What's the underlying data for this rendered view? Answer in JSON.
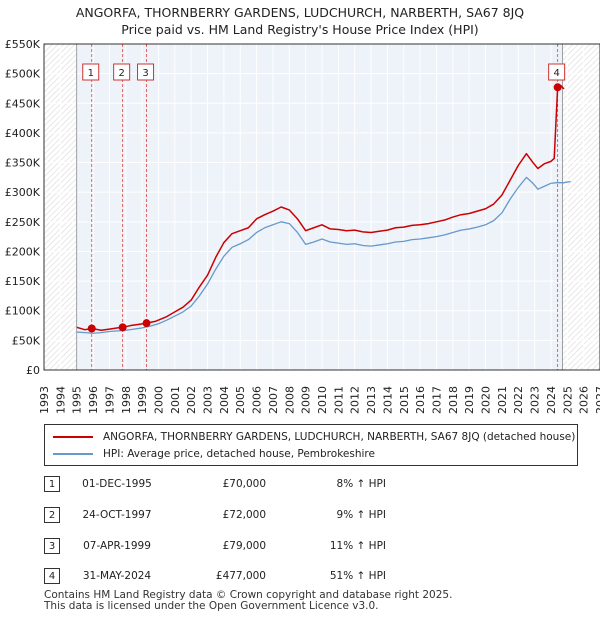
{
  "title": {
    "line1": "ANGORFA, THORNBERRY GARDENS, LUDCHURCH, NARBERTH, SA67 8JQ",
    "line2": "Price paid vs. HM Land Registry's House Price Index (HPI)"
  },
  "chart_data": {
    "type": "line",
    "title": "ANGORFA, THORNBERRY GARDENS, LUDCHURCH, NARBERTH, SA67 8JQ — Price paid vs. HM Land Registry's House Price Index (HPI)",
    "xlabel": "",
    "ylabel": "",
    "xlim": [
      1993,
      2027
    ],
    "ylim": [
      0,
      550000
    ],
    "x_ticks": [
      1993,
      1994,
      1995,
      1996,
      1997,
      1998,
      1999,
      2000,
      2001,
      2002,
      2003,
      2004,
      2005,
      2006,
      2007,
      2008,
      2009,
      2010,
      2011,
      2012,
      2013,
      2014,
      2015,
      2016,
      2017,
      2018,
      2019,
      2020,
      2021,
      2022,
      2023,
      2024,
      2025,
      2026,
      2027
    ],
    "y_ticks": [
      0,
      50000,
      100000,
      150000,
      200000,
      250000,
      300000,
      350000,
      400000,
      450000,
      500000,
      550000
    ],
    "y_tick_labels": [
      "£0",
      "£50K",
      "£100K",
      "£150K",
      "£200K",
      "£250K",
      "£300K",
      "£350K",
      "£400K",
      "£450K",
      "£500K",
      "£550K"
    ],
    "grid": true,
    "hatched_ranges": [
      [
        1993,
        1995.0
      ],
      [
        2024.7,
        2027
      ]
    ],
    "series": [
      {
        "name": "ANGORFA, THORNBERRY GARDENS, LUDCHURCH, NARBERTH, SA67 8JQ (detached house)",
        "color": "#cc0000",
        "points": [
          [
            1995.0,
            72000
          ],
          [
            1995.5,
            68000
          ],
          [
            1995.92,
            70000
          ],
          [
            1996.5,
            67000
          ],
          [
            1997.0,
            69000
          ],
          [
            1997.5,
            71000
          ],
          [
            1997.81,
            72000
          ],
          [
            1998.3,
            75000
          ],
          [
            1998.8,
            77000
          ],
          [
            1999.27,
            79000
          ],
          [
            1999.8,
            82000
          ],
          [
            2000.5,
            90000
          ],
          [
            2001.0,
            98000
          ],
          [
            2001.5,
            106000
          ],
          [
            2002.0,
            118000
          ],
          [
            2002.5,
            140000
          ],
          [
            2003.0,
            160000
          ],
          [
            2003.5,
            190000
          ],
          [
            2004.0,
            215000
          ],
          [
            2004.5,
            230000
          ],
          [
            2005.0,
            235000
          ],
          [
            2005.5,
            240000
          ],
          [
            2006.0,
            255000
          ],
          [
            2006.5,
            262000
          ],
          [
            2007.0,
            268000
          ],
          [
            2007.5,
            275000
          ],
          [
            2008.0,
            270000
          ],
          [
            2008.5,
            255000
          ],
          [
            2009.0,
            235000
          ],
          [
            2009.5,
            240000
          ],
          [
            2010.0,
            245000
          ],
          [
            2010.5,
            238000
          ],
          [
            2011.0,
            237000
          ],
          [
            2011.5,
            235000
          ],
          [
            2012.0,
            236000
          ],
          [
            2012.5,
            233000
          ],
          [
            2013.0,
            232000
          ],
          [
            2013.5,
            234000
          ],
          [
            2014.0,
            236000
          ],
          [
            2014.5,
            240000
          ],
          [
            2015.0,
            241000
          ],
          [
            2015.5,
            244000
          ],
          [
            2016.0,
            245000
          ],
          [
            2016.5,
            247000
          ],
          [
            2017.0,
            250000
          ],
          [
            2017.5,
            253000
          ],
          [
            2018.0,
            258000
          ],
          [
            2018.5,
            262000
          ],
          [
            2019.0,
            264000
          ],
          [
            2019.5,
            268000
          ],
          [
            2020.0,
            272000
          ],
          [
            2020.5,
            280000
          ],
          [
            2021.0,
            295000
          ],
          [
            2021.5,
            320000
          ],
          [
            2022.0,
            345000
          ],
          [
            2022.5,
            365000
          ],
          [
            2022.9,
            350000
          ],
          [
            2023.2,
            340000
          ],
          [
            2023.6,
            348000
          ],
          [
            2024.0,
            352000
          ],
          [
            2024.2,
            357000
          ],
          [
            2024.41,
            477000
          ],
          [
            2024.6,
            480000
          ],
          [
            2024.8,
            474000
          ]
        ]
      },
      {
        "name": "HPI: Average price, detached house, Pembrokeshire",
        "color": "#6699cc",
        "points": [
          [
            1995.0,
            64000
          ],
          [
            1995.5,
            63000
          ],
          [
            1996.0,
            62000
          ],
          [
            1996.5,
            63000
          ],
          [
            1997.0,
            65000
          ],
          [
            1997.5,
            66000
          ],
          [
            1998.0,
            67000
          ],
          [
            1998.5,
            69000
          ],
          [
            1999.0,
            71000
          ],
          [
            1999.5,
            74000
          ],
          [
            2000.0,
            78000
          ],
          [
            2000.5,
            84000
          ],
          [
            2001.0,
            91000
          ],
          [
            2001.5,
            98000
          ],
          [
            2002.0,
            108000
          ],
          [
            2002.5,
            125000
          ],
          [
            2003.0,
            145000
          ],
          [
            2003.5,
            170000
          ],
          [
            2004.0,
            192000
          ],
          [
            2004.5,
            207000
          ],
          [
            2005.0,
            213000
          ],
          [
            2005.5,
            220000
          ],
          [
            2006.0,
            232000
          ],
          [
            2006.5,
            240000
          ],
          [
            2007.0,
            245000
          ],
          [
            2007.5,
            250000
          ],
          [
            2008.0,
            247000
          ],
          [
            2008.5,
            232000
          ],
          [
            2009.0,
            212000
          ],
          [
            2009.5,
            216000
          ],
          [
            2010.0,
            221000
          ],
          [
            2010.5,
            216000
          ],
          [
            2011.0,
            214000
          ],
          [
            2011.5,
            212000
          ],
          [
            2012.0,
            213000
          ],
          [
            2012.5,
            210000
          ],
          [
            2013.0,
            209000
          ],
          [
            2013.5,
            211000
          ],
          [
            2014.0,
            213000
          ],
          [
            2014.5,
            216000
          ],
          [
            2015.0,
            217000
          ],
          [
            2015.5,
            220000
          ],
          [
            2016.0,
            221000
          ],
          [
            2016.5,
            223000
          ],
          [
            2017.0,
            225000
          ],
          [
            2017.5,
            228000
          ],
          [
            2018.0,
            232000
          ],
          [
            2018.5,
            236000
          ],
          [
            2019.0,
            238000
          ],
          [
            2019.5,
            241000
          ],
          [
            2020.0,
            245000
          ],
          [
            2020.5,
            252000
          ],
          [
            2021.0,
            265000
          ],
          [
            2021.5,
            288000
          ],
          [
            2022.0,
            308000
          ],
          [
            2022.5,
            325000
          ],
          [
            2022.9,
            315000
          ],
          [
            2023.2,
            305000
          ],
          [
            2023.6,
            310000
          ],
          [
            2024.0,
            315000
          ],
          [
            2024.4,
            316000
          ],
          [
            2024.8,
            316000
          ],
          [
            2025.2,
            318000
          ]
        ]
      }
    ],
    "sales": [
      {
        "id": "1",
        "date": "01-DEC-1995",
        "x": 1995.92,
        "price": 70000,
        "price_label": "£70,000",
        "hpi_label": "8% ↑ HPI"
      },
      {
        "id": "2",
        "date": "24-OCT-1997",
        "x": 1997.81,
        "price": 72000,
        "price_label": "£72,000",
        "hpi_label": "9% ↑ HPI"
      },
      {
        "id": "3",
        "date": "07-APR-1999",
        "x": 1999.27,
        "price": 79000,
        "price_label": "£79,000",
        "hpi_label": "11% ↑ HPI"
      },
      {
        "id": "4",
        "date": "31-MAY-2024",
        "x": 2024.41,
        "price": 477000,
        "price_label": "£477,000",
        "hpi_label": "51% ↑ HPI"
      }
    ]
  },
  "legend": {
    "items": [
      {
        "label": "ANGORFA, THORNBERRY GARDENS, LUDCHURCH, NARBERTH, SA67 8JQ (detached house)",
        "color": "#cc0000"
      },
      {
        "label": "HPI: Average price, detached house, Pembrokeshire",
        "color": "#6699cc"
      }
    ]
  },
  "footer": {
    "line1": "Contains HM Land Registry data © Crown copyright and database right 2025.",
    "line2": "This data is licensed under the Open Government Licence v3.0."
  }
}
